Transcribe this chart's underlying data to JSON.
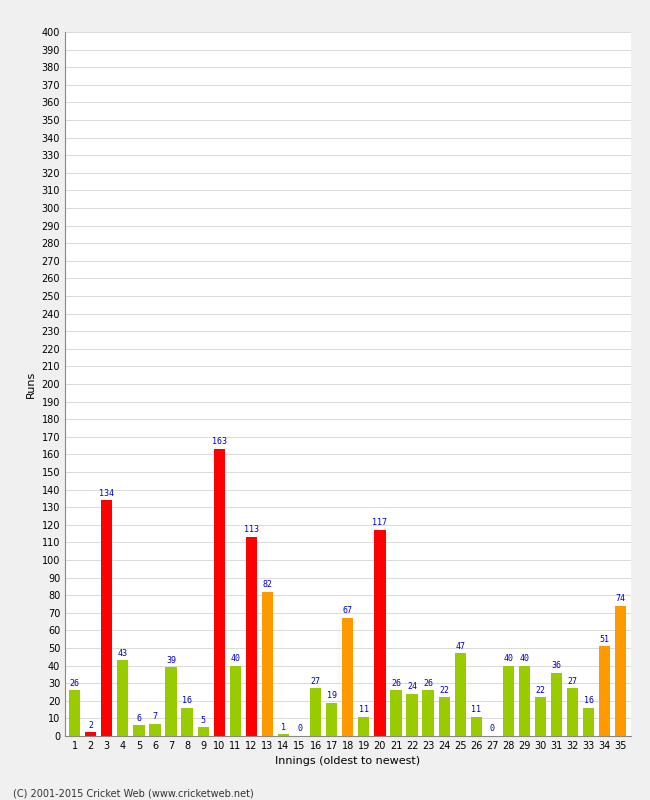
{
  "innings": [
    1,
    2,
    3,
    4,
    5,
    6,
    7,
    8,
    9,
    10,
    11,
    12,
    13,
    14,
    15,
    16,
    17,
    18,
    19,
    20,
    21,
    22,
    23,
    24,
    25,
    26,
    27,
    28,
    29,
    30,
    31,
    32,
    33,
    34,
    35
  ],
  "values": [
    26,
    2,
    134,
    43,
    6,
    7,
    39,
    16,
    5,
    163,
    40,
    113,
    82,
    1,
    0,
    27,
    19,
    67,
    11,
    117,
    26,
    24,
    26,
    22,
    47,
    11,
    0,
    40,
    40,
    22,
    36,
    27,
    16,
    51,
    74
  ],
  "colors": [
    "#99cc00",
    "#ff0000",
    "#ff0000",
    "#99cc00",
    "#99cc00",
    "#99cc00",
    "#99cc00",
    "#99cc00",
    "#99cc00",
    "#ff0000",
    "#99cc00",
    "#ff0000",
    "#ff9900",
    "#99cc00",
    "#99cc00",
    "#99cc00",
    "#99cc00",
    "#ff9900",
    "#99cc00",
    "#ff0000",
    "#99cc00",
    "#99cc00",
    "#99cc00",
    "#99cc00",
    "#99cc00",
    "#99cc00",
    "#99cc00",
    "#99cc00",
    "#99cc00",
    "#99cc00",
    "#99cc00",
    "#99cc00",
    "#99cc00",
    "#ff9900",
    "#ff9900"
  ],
  "xlabel": "Innings (oldest to newest)",
  "ylabel": "Runs",
  "ylim": [
    0,
    400
  ],
  "background_color": "#f0f0f0",
  "plot_bg_color": "#ffffff",
  "label_color": "#0000cc",
  "copyright": "(C) 2001-2015 Cricket Web (www.cricketweb.net)"
}
